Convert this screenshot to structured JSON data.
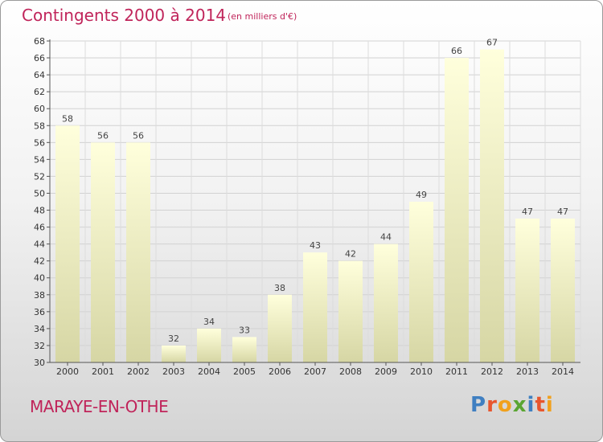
{
  "header": {
    "title": "Contingents 2000 à 2014",
    "subtitle": "(en milliers d'€)"
  },
  "footer": {
    "town": "MARAYE-EN-OTHE",
    "logo": [
      "P",
      "r",
      "o",
      "x",
      "i",
      "t",
      "i"
    ]
  },
  "colors": {
    "title": "#c0245a",
    "bar_light": "#ffffdc",
    "bar_dark": "#d6d6a4",
    "logo": [
      "#3f7fc1",
      "#e8562e",
      "#f1a11d",
      "#5aa532",
      "#3f7fc1",
      "#e8562e",
      "#f1a11d"
    ]
  },
  "chart_data": {
    "type": "bar",
    "categories": [
      "2000",
      "2001",
      "2002",
      "2003",
      "2004",
      "2005",
      "2006",
      "2007",
      "2008",
      "2009",
      "2010",
      "2011",
      "2012",
      "2013",
      "2014"
    ],
    "values": [
      58,
      56,
      56,
      32,
      34,
      33,
      38,
      43,
      42,
      44,
      49,
      66,
      67,
      47,
      47
    ],
    "data_labels": [
      "58",
      "56",
      "56",
      "32",
      "34",
      "33",
      "38",
      "43",
      "42",
      "44",
      "49",
      "66",
      "67",
      "47",
      "47"
    ],
    "yticks": [
      "30",
      "32",
      "34",
      "36",
      "38",
      "40",
      "42",
      "44",
      "46",
      "48",
      "50",
      "52",
      "54",
      "56",
      "58",
      "60",
      "62",
      "64",
      "66",
      "68"
    ],
    "ylim": [
      30,
      68
    ],
    "grid": true,
    "legend": "none"
  }
}
